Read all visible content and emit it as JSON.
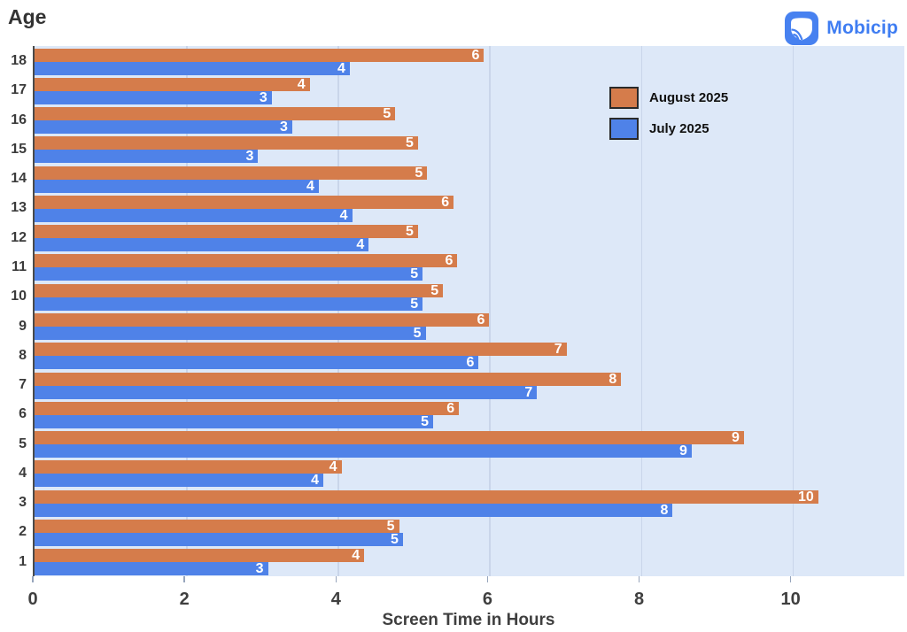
{
  "page": {
    "title": "Age",
    "brand": "Mobicip"
  },
  "colors": {
    "august": "#d57c4b",
    "july": "#4f82e8",
    "plot_background": "#dde8f8",
    "gridline": "#c9d5ea",
    "axis_text": "#3f3f3f",
    "brand_blue": "#3f7df2"
  },
  "legend": {
    "position": "top-right-inside",
    "items": [
      {
        "label": "August 2025",
        "color": "#d57c4b"
      },
      {
        "label": "July 2025",
        "color": "#4f82e8"
      }
    ]
  },
  "chart_data": {
    "type": "bar",
    "orientation": "horizontal",
    "title": "Age",
    "xlabel": "Screen Time in Hours",
    "ylabel": "Age",
    "grid": true,
    "xlim": [
      0,
      11.5
    ],
    "x_ticks": [
      0,
      2,
      4,
      6,
      8,
      10
    ],
    "categories": [
      "18",
      "17",
      "16",
      "15",
      "14",
      "13",
      "12",
      "11",
      "10",
      "9",
      "8",
      "7",
      "6",
      "5",
      "4",
      "3",
      "2",
      "1"
    ],
    "series": [
      {
        "name": "August 2025",
        "color": "#d57c4b",
        "values": [
          5.93,
          3.63,
          4.76,
          5.06,
          5.18,
          5.53,
          5.06,
          5.58,
          5.39,
          6.0,
          7.02,
          7.74,
          5.6,
          9.36,
          4.05,
          10.34,
          4.81,
          4.35
        ],
        "labels": [
          "6",
          "4",
          "5",
          "5",
          "5",
          "6",
          "5",
          "6",
          "5",
          "6",
          "7",
          "8",
          "6",
          "9",
          "4",
          "10",
          "5",
          "4"
        ]
      },
      {
        "name": "July 2025",
        "color": "#4f82e8",
        "values": [
          4.16,
          3.13,
          3.4,
          2.95,
          3.75,
          4.19,
          4.41,
          5.12,
          5.12,
          5.16,
          5.86,
          6.63,
          5.26,
          8.67,
          3.81,
          8.42,
          4.86,
          3.08
        ],
        "labels": [
          "4",
          "3",
          "3",
          "3",
          "4",
          "4",
          "4",
          "5",
          "5",
          "5",
          "6",
          "7",
          "5",
          "9",
          "4",
          "8",
          "5",
          "3"
        ]
      }
    ]
  }
}
